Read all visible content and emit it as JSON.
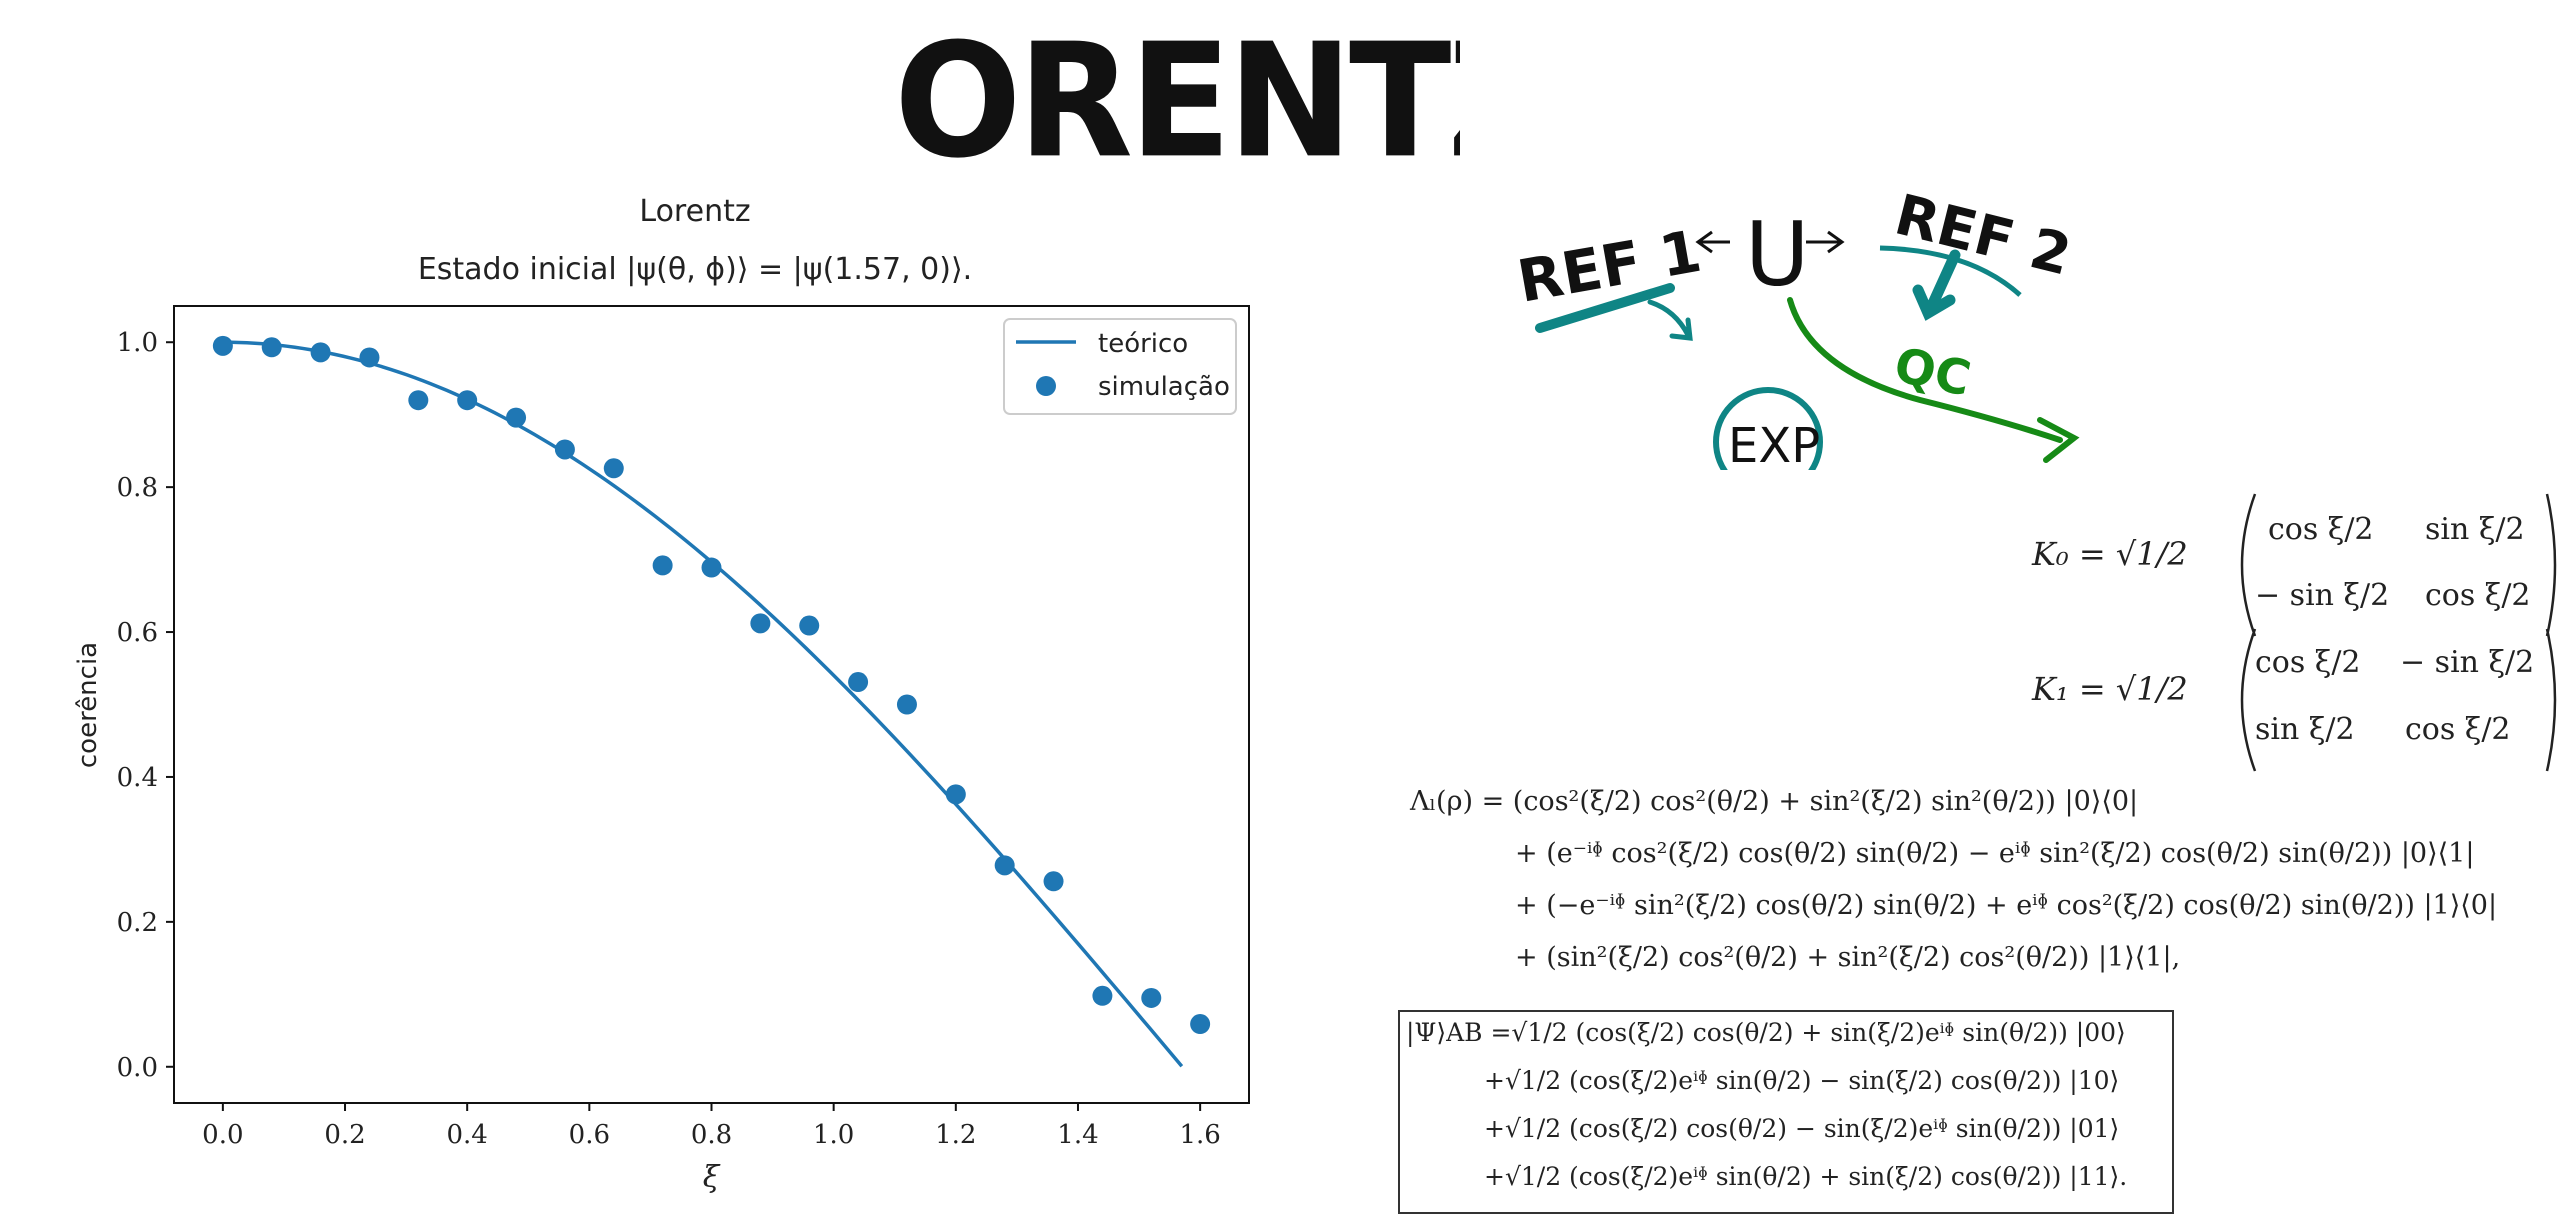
{
  "page": {
    "big_title": "LORENTZ"
  },
  "sketch": {
    "ref1": "REF 1",
    "ref2": "REF 2",
    "u": "U",
    "qc": "QC",
    "exp": "EXP",
    "colors": {
      "teal": "#0f8585",
      "green": "#168a16",
      "ink": "#111111"
    }
  },
  "chart_data": {
    "type": "scatter",
    "title": "Lorentz",
    "subtitle": "Estado inicial |ψ(θ, ϕ)⟩ = |ψ(1.57, 0)⟩.",
    "xlabel": "ξ",
    "ylabel": "coerência",
    "xlim": [
      -0.08,
      1.68
    ],
    "ylim": [
      -0.05,
      1.05
    ],
    "xticks": [
      "0.0",
      "0.2",
      "0.4",
      "0.6",
      "0.8",
      "1.0",
      "1.2",
      "1.4",
      "1.6"
    ],
    "yticks": [
      "0.0",
      "0.2",
      "0.4",
      "0.6",
      "0.8",
      "1.0"
    ],
    "legend": {
      "position": "top-right",
      "line_label": "teórico",
      "marker_label": "simulação"
    },
    "color": "#1f77b4",
    "theory": {
      "name": "teórico",
      "function": "cos(x)",
      "x_max": 1.57
    },
    "series": [
      {
        "name": "simulação",
        "x": [
          0.0,
          0.08,
          0.16,
          0.24,
          0.32,
          0.4,
          0.48,
          0.56,
          0.64,
          0.72,
          0.8,
          0.88,
          0.96,
          1.04,
          1.12,
          1.2,
          1.28,
          1.36,
          1.44,
          1.52,
          1.6
        ],
        "y": [
          0.995,
          0.993,
          0.986,
          0.979,
          0.92,
          0.92,
          0.896,
          0.852,
          0.826,
          0.692,
          0.689,
          0.612,
          0.609,
          0.531,
          0.5,
          0.376,
          0.278,
          0.256,
          0.098,
          0.095,
          0.059
        ]
      }
    ]
  },
  "equations": {
    "k0_lhs": "K₀ = √1/2",
    "k0_r1c1": "cos ξ/2",
    "k0_r1c2": "sin ξ/2",
    "k0_r2c1": "− sin ξ/2",
    "k0_r2c2": "cos ξ/2",
    "k1_lhs": "K₁ = √1/2",
    "k1_r1c1": "cos ξ/2",
    "k1_r1c2": "− sin ξ/2",
    "k1_r2c1": "sin ξ/2",
    "k1_r2c2": "cos ξ/2",
    "lambda_1": "Λₗ(ρ) = (cos²(ξ/2) cos²(θ/2) + sin²(ξ/2) sin²(θ/2)) |0⟩⟨0|",
    "lambda_2": "+ (e⁻ⁱᶲ cos²(ξ/2) cos(θ/2) sin(θ/2) − eⁱᶲ sin²(ξ/2) cos(θ/2) sin(θ/2)) |0⟩⟨1|",
    "lambda_3": "+ (−e⁻ⁱᶲ sin²(ξ/2) cos(θ/2) sin(θ/2) + eⁱᶲ cos²(ξ/2) cos(θ/2) sin(θ/2)) |1⟩⟨0|",
    "lambda_4": "+ (sin²(ξ/2) cos²(θ/2) + sin²(ξ/2) cos²(θ/2)) |1⟩⟨1|,",
    "psi_1": "|Ψ⟩AB =√1/2 (cos(ξ/2) cos(θ/2) + sin(ξ/2)eⁱᶲ sin(θ/2)) |00⟩",
    "psi_2": "+√1/2 (cos(ξ/2)eⁱᶲ sin(θ/2) − sin(ξ/2) cos(θ/2)) |10⟩",
    "psi_3": "+√1/2 (cos(ξ/2) cos(θ/2) − sin(ξ/2)eⁱᶲ sin(θ/2)) |01⟩",
    "psi_4": "+√1/2 (cos(ξ/2)eⁱᶲ sin(θ/2) + sin(ξ/2) cos(θ/2)) |11⟩."
  }
}
